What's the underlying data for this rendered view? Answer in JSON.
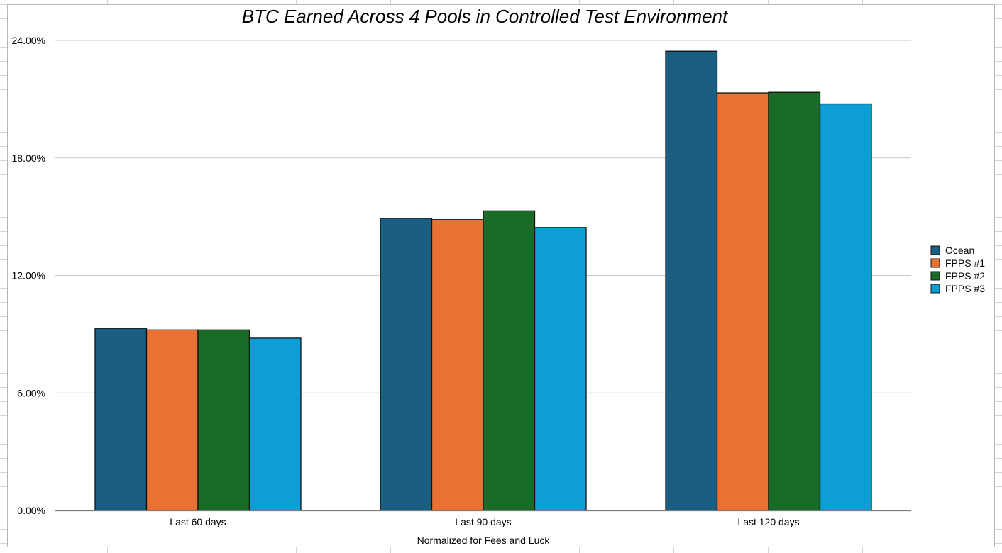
{
  "chart_data": {
    "type": "bar",
    "title": "BTC Earned Across 4 Pools in Controlled Test Environment",
    "xlabel": "Normalized for Fees and Luck",
    "ylabel": "",
    "ylim": [
      0,
      24
    ],
    "yticks": [
      "0.00%",
      "6.00%",
      "12.00%",
      "18.00%",
      "24.00%"
    ],
    "ytick_values": [
      0,
      6,
      12,
      18,
      24
    ],
    "grid": true,
    "legend_position": "right",
    "categories": [
      "Last 60 days",
      "Last 90 days",
      "Last 120 days"
    ],
    "series": [
      {
        "name": "Ocean",
        "color": "#1a5f82",
        "values": [
          9.3,
          14.92,
          23.45
        ]
      },
      {
        "name": "FPPS #1",
        "color": "#e87133",
        "values": [
          9.22,
          14.85,
          21.32
        ]
      },
      {
        "name": "FPPS #2",
        "color": "#1a6b28",
        "values": [
          9.22,
          15.3,
          21.35
        ]
      },
      {
        "name": "FPPS #3",
        "color": "#0f9dd6",
        "values": [
          8.8,
          14.45,
          20.76
        ]
      }
    ]
  }
}
